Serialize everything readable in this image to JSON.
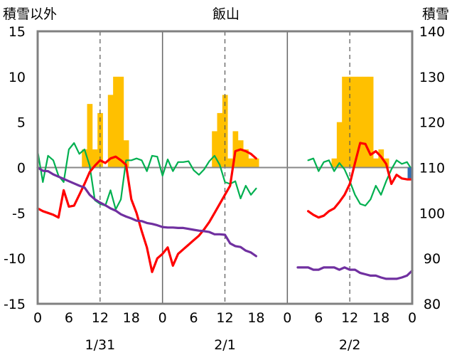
{
  "chart_data": {
    "type": "bar+line",
    "title": "飯山",
    "left_axis_title": "積雪以外",
    "right_axis_title": "積雪",
    "ylim_left": [
      -15,
      15
    ],
    "left_ticks": [
      15,
      10,
      5,
      0,
      -5,
      -10,
      -15
    ],
    "ylim_right": [
      80,
      140
    ],
    "right_ticks": [
      140,
      130,
      120,
      110,
      100,
      90,
      80
    ],
    "x_tick_labels": [
      "0",
      "6",
      "12",
      "18",
      "0",
      "6",
      "12",
      "18",
      "0",
      "6",
      "12",
      "18",
      "0"
    ],
    "x_tick_hours": [
      0,
      6,
      12,
      18,
      24,
      30,
      36,
      42,
      48,
      54,
      60,
      66,
      72
    ],
    "date_labels": [
      {
        "label": "1/31",
        "hour": 12
      },
      {
        "label": "2/1",
        "hour": 36
      },
      {
        "label": "2/2",
        "hour": 60
      }
    ],
    "snowfall_bars": {
      "color": "#ffc000",
      "hours": [
        9,
        10,
        11,
        12,
        13,
        14,
        15,
        16,
        17,
        34,
        35,
        36,
        37,
        38,
        39,
        40,
        41,
        42,
        57,
        58,
        59,
        60,
        61,
        62,
        63,
        64,
        65,
        66,
        67,
        68
      ],
      "values": [
        2,
        7,
        2,
        6,
        0,
        8,
        10,
        10,
        3,
        4,
        6,
        8,
        1,
        4,
        3,
        2,
        1,
        1,
        1,
        5,
        10,
        10,
        10,
        10,
        10,
        10,
        1,
        2,
        1,
        0
      ]
    },
    "series": [
      {
        "color": "#00b050",
        "axis": "left",
        "segments": [
          {
            "hours": [
              0,
              1,
              2,
              3,
              4,
              5,
              6,
              7,
              8,
              9,
              10,
              11,
              12,
              13,
              14,
              15,
              16,
              17,
              18,
              19,
              20,
              21,
              22,
              23,
              24,
              25,
              26,
              27,
              28,
              29,
              30,
              31,
              32,
              33,
              34,
              35,
              36,
              37,
              38,
              39,
              40,
              41,
              42
            ],
            "values": [
              1.8,
              -1.6,
              1.3,
              0.8,
              -0.9,
              -1.6,
              2.0,
              2.7,
              1.5,
              2.0,
              0.2,
              -3.6,
              -4.0,
              -4.2,
              -2.5,
              -4.6,
              -3.5,
              0.8,
              0.8,
              1.0,
              0.8,
              -0.4,
              1.3,
              1.2,
              -0.9,
              0.9,
              -0.4,
              0.6,
              0.6,
              0.7,
              -0.3,
              -0.8,
              -0.2,
              0.7,
              1.3,
              0.3,
              -1.6,
              -1.8,
              -1.5,
              -3.4,
              -2.0,
              -3.0,
              -2.3
            ]
          },
          {
            "hours": [
              52,
              53,
              54,
              55,
              56,
              57,
              58,
              59,
              60,
              61,
              62,
              63,
              64,
              65,
              66,
              67,
              68,
              69,
              70,
              71,
              72
            ],
            "values": [
              0.8,
              1.0,
              -0.4,
              0.6,
              0.8,
              -0.4,
              0.5,
              -0.2,
              -1.5,
              -3.0,
              -4.0,
              -4.2,
              -3.5,
              -2.0,
              -3.0,
              -1.5,
              -0.2,
              0.8,
              0.4,
              0.6,
              -0.3
            ]
          }
        ]
      },
      {
        "color": "#ff0000",
        "axis": "left",
        "segments": [
          {
            "hours": [
              0,
              1,
              2,
              3,
              4,
              5,
              6,
              7,
              8,
              9,
              10,
              11,
              12,
              13,
              14,
              15,
              16,
              17,
              18,
              19,
              20,
              21,
              22,
              23,
              24,
              25,
              26,
              27,
              28,
              29,
              30,
              31,
              32,
              33,
              34,
              35,
              36,
              37,
              38,
              39,
              40,
              41,
              42
            ],
            "values": [
              -4.5,
              -4.8,
              -5.0,
              -5.2,
              -5.5,
              -2.5,
              -4.3,
              -4.2,
              -3.0,
              -1.8,
              -0.5,
              0.2,
              0.8,
              0.5,
              1.0,
              1.2,
              0.8,
              0.3,
              -3.5,
              -5.0,
              -7.0,
              -8.8,
              -11.5,
              -10.0,
              -9.5,
              -8.8,
              -10.8,
              -9.5,
              -9.0,
              -8.5,
              -8.0,
              -7.5,
              -6.8,
              -6.0,
              -5.0,
              -4.0,
              -3.0,
              -2.0,
              1.8,
              2.0,
              1.8,
              1.5,
              1.0
            ]
          },
          {
            "hours": [
              52,
              53,
              54,
              55,
              56,
              57,
              58,
              59,
              60,
              61,
              62,
              63,
              64,
              65,
              66,
              67,
              68,
              69,
              70,
              71,
              72
            ],
            "values": [
              -4.8,
              -5.2,
              -5.5,
              -5.3,
              -4.8,
              -4.5,
              -3.8,
              -3.0,
              -1.8,
              0.5,
              2.7,
              2.6,
              1.4,
              1.8,
              1.2,
              0.4,
              -1.8,
              -0.8,
              -1.2,
              -1.3,
              -1.3
            ]
          }
        ]
      },
      {
        "color": "#7030a0",
        "axis": "right",
        "segments": [
          {
            "hours": [
              0,
              1,
              2,
              3,
              4,
              5,
              6,
              7,
              8,
              9,
              10,
              11,
              12,
              13,
              14,
              15,
              16,
              17,
              18,
              19,
              20,
              21,
              22,
              23,
              24,
              25,
              26,
              27,
              28,
              29,
              30,
              31,
              32,
              33,
              34,
              35,
              36,
              37,
              38,
              39,
              40,
              41,
              42
            ],
            "values": [
              110.0,
              109.3,
              109.2,
              108.5,
              108.0,
              107.5,
              107.0,
              106.5,
              106.0,
              105.6,
              104.0,
              103.0,
              102.3,
              101.7,
              101.0,
              100.5,
              99.7,
              99.2,
              98.8,
              98.3,
              98.2,
              97.8,
              97.6,
              97.3,
              96.9,
              96.8,
              96.8,
              96.7,
              96.7,
              96.5,
              96.3,
              96.1,
              96.0,
              95.8,
              95.3,
              95.3,
              95.2,
              93.3,
              92.7,
              92.5,
              91.7,
              91.3,
              90.5
            ]
          },
          {
            "hours": [
              50,
              51,
              52,
              53,
              54,
              55,
              56,
              57,
              58,
              59,
              60,
              61,
              62,
              63,
              64,
              65,
              66,
              67,
              68,
              69,
              70,
              71,
              72
            ],
            "values": [
              88.0,
              88.0,
              88.0,
              87.5,
              87.5,
              88.0,
              88.0,
              88.0,
              87.5,
              88.0,
              87.5,
              87.5,
              86.8,
              86.5,
              86.2,
              86.2,
              85.8,
              85.5,
              85.5,
              85.5,
              85.8,
              86.2,
              87.3
            ]
          }
        ]
      }
    ],
    "end_marker": {
      "hour": 71.8,
      "value": -0.7,
      "color": "#2f6eb5"
    }
  }
}
